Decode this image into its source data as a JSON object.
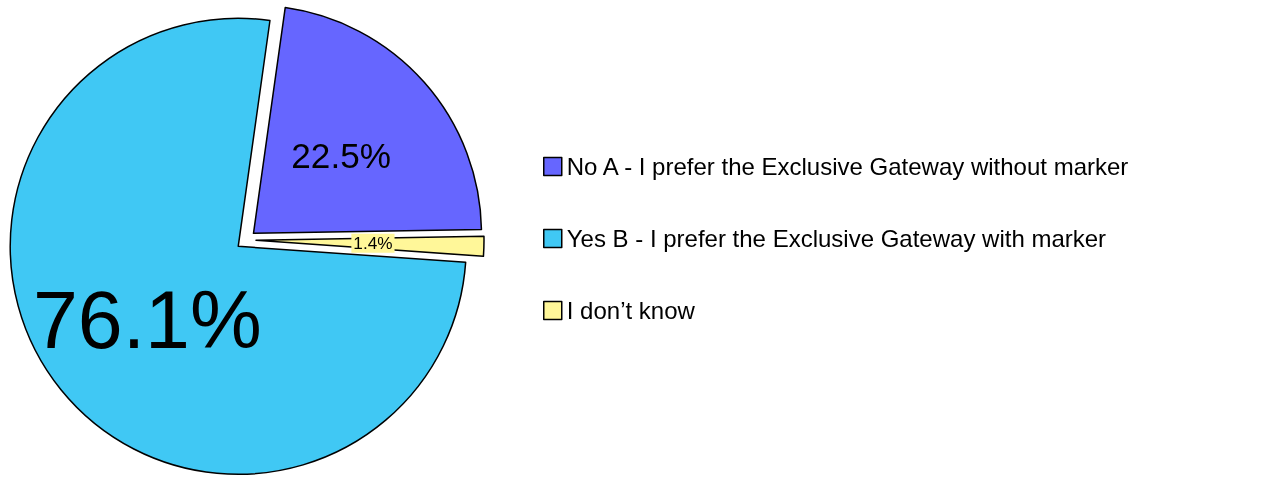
{
  "chart_data": {
    "type": "pie",
    "categories": [
      "No A - I prefer the Exclusive Gateway without marker",
      "Yes B - I prefer the Exclusive Gateway with marker",
      "I don’t know"
    ],
    "values": [
      22.5,
      76.1,
      1.4
    ],
    "colors": [
      "#6666ff",
      "#40c8f4",
      "#fff799"
    ],
    "value_labels": [
      "22.5%",
      "76.1%",
      "1.4%"
    ],
    "legend": "right"
  }
}
